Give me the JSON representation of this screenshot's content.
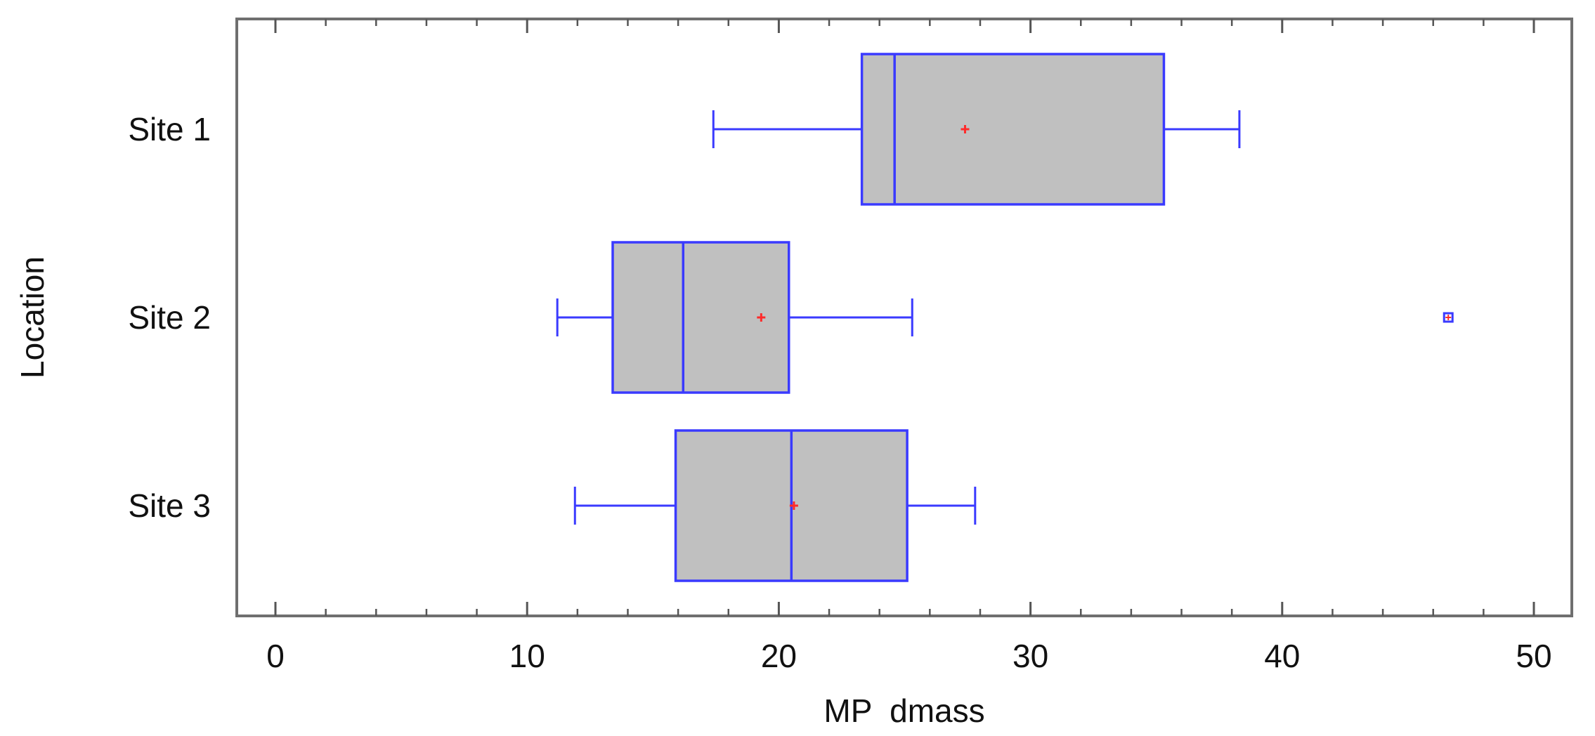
{
  "chart_data": {
    "type": "boxplot",
    "orientation": "horizontal",
    "title": "",
    "xlabel": "MP  dmass",
    "ylabel": "Location",
    "xlim": [
      0,
      50
    ],
    "x_major_ticks": [
      0,
      10,
      20,
      30,
      40,
      50
    ],
    "x_tick_labels": [
      "0",
      "10",
      "20",
      "30",
      "40",
      "50"
    ],
    "x_minor_tick_step": 2,
    "grid": false,
    "legend": null,
    "categories": [
      "Site 1",
      "Site 2",
      "Site 3"
    ],
    "series": [
      {
        "name": "Site 1",
        "min": 17.4,
        "q1": 23.3,
        "median": 24.6,
        "mean": 27.4,
        "q3": 35.3,
        "max": 38.3,
        "outliers": []
      },
      {
        "name": "Site 2",
        "min": 11.2,
        "q1": 13.4,
        "median": 16.2,
        "mean": 19.3,
        "q3": 20.4,
        "max": 25.3,
        "outliers": [
          46.6
        ]
      },
      {
        "name": "Site 3",
        "min": 11.9,
        "q1": 15.9,
        "median": 20.5,
        "mean": 20.6,
        "q3": 25.1,
        "max": 27.8,
        "outliers": []
      }
    ],
    "colors": {
      "box_fill": "#c0c0c0",
      "box_stroke": "#3a3aff",
      "whisker": "#3a3aff",
      "mean_marker": "#ff2a2a",
      "outlier_stroke": "#3a3aff",
      "frame": "#6f6f6f"
    }
  }
}
